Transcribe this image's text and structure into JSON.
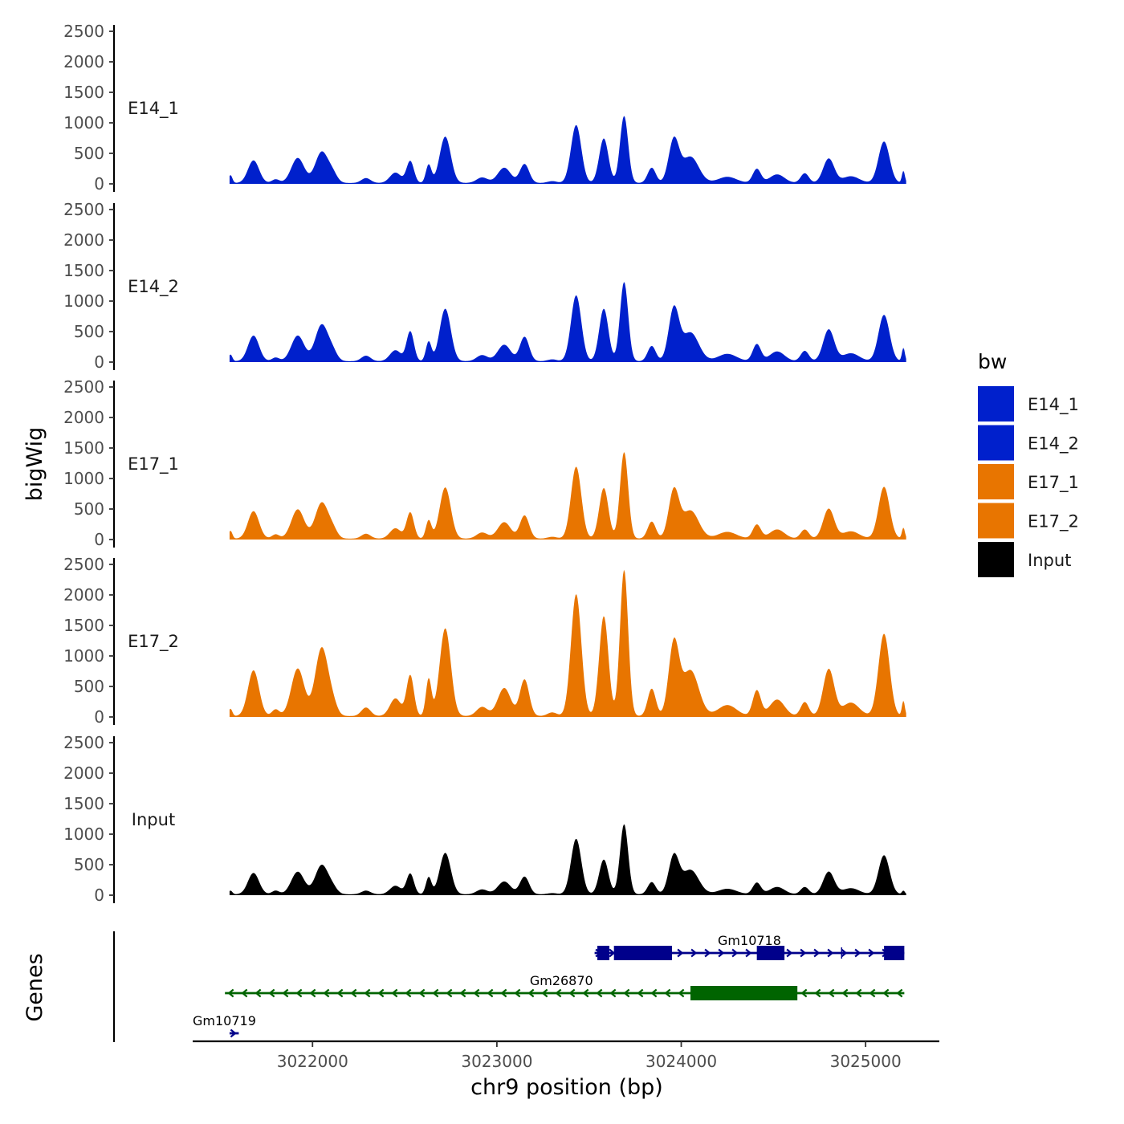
{
  "chart_data": {
    "type": "area",
    "region": "chr9",
    "xlabel": "chr9 position (bp)",
    "ylabel": "bigWig",
    "genes_label": "Genes",
    "xlim": [
      3021350,
      3025400
    ],
    "xticks": [
      3022000,
      3023000,
      3024000,
      3025000
    ],
    "xtick_labels": [
      "3022000",
      "3023000",
      "3024000",
      "3025000"
    ],
    "signal_range": [
      3021550,
      3025220
    ],
    "ylim": [
      0,
      2550
    ],
    "yticks": [
      0,
      500,
      1000,
      1500,
      2000,
      2500
    ],
    "ytick_labels": [
      "0",
      "500",
      "1000",
      "1500",
      "2000",
      "2500"
    ],
    "peaks": [
      {
        "center": 3021555,
        "width": 10
      },
      {
        "center": 3021680,
        "width": 30
      },
      {
        "center": 3021800,
        "width": 20
      },
      {
        "center": 3021920,
        "width": 35
      },
      {
        "center": 3022050,
        "width": 35
      },
      {
        "center": 3022110,
        "width": 25
      },
      {
        "center": 3022290,
        "width": 25
      },
      {
        "center": 3022450,
        "width": 30
      },
      {
        "center": 3022530,
        "width": 20
      },
      {
        "center": 3022630,
        "width": 15
      },
      {
        "center": 3022720,
        "width": 30
      },
      {
        "center": 3022920,
        "width": 30
      },
      {
        "center": 3023040,
        "width": 35
      },
      {
        "center": 3023150,
        "width": 25
      },
      {
        "center": 3023300,
        "width": 25
      },
      {
        "center": 3023430,
        "width": 28
      },
      {
        "center": 3023580,
        "width": 25
      },
      {
        "center": 3023690,
        "width": 22
      },
      {
        "center": 3023840,
        "width": 22
      },
      {
        "center": 3023960,
        "width": 28
      },
      {
        "center": 3024050,
        "width": 45
      },
      {
        "center": 3024250,
        "width": 50
      },
      {
        "center": 3024410,
        "width": 22
      },
      {
        "center": 3024520,
        "width": 40
      },
      {
        "center": 3024670,
        "width": 22
      },
      {
        "center": 3024800,
        "width": 30
      },
      {
        "center": 3024920,
        "width": 45
      },
      {
        "center": 3025100,
        "width": 30
      },
      {
        "center": 3025205,
        "width": 8
      }
    ],
    "baseline": 15,
    "tracks": [
      {
        "name": "E14_1",
        "label": "E14_1",
        "color": "#0020CC",
        "amplitudes": [
          130,
          370,
          60,
          410,
          510,
          130,
          80,
          170,
          360,
          300,
          760,
          90,
          250,
          310,
          30,
          950,
          730,
          1100,
          250,
          700,
          430,
          100,
          230,
          140,
          160,
          400,
          110,
          680,
          200
        ]
      },
      {
        "name": "E14_2",
        "label": "E14_2",
        "color": "#0020CC",
        "amplitudes": [
          110,
          420,
          60,
          420,
          600,
          130,
          90,
          180,
          490,
          320,
          860,
          100,
          270,
          400,
          30,
          1080,
          860,
          1300,
          250,
          850,
          470,
          120,
          280,
          160,
          170,
          520,
          130,
          760,
          220
        ]
      },
      {
        "name": "E17_1",
        "label": "E17_1",
        "color": "#E87500",
        "amplitudes": [
          130,
          450,
          70,
          480,
          590,
          130,
          80,
          170,
          430,
          300,
          840,
          100,
          270,
          380,
          30,
          1180,
          830,
          1420,
          280,
          780,
          460,
          110,
          230,
          150,
          150,
          490,
          120,
          850,
          180
        ]
      },
      {
        "name": "E17_2",
        "label": "E17_2",
        "color": "#E87500",
        "amplitudes": [
          120,
          750,
          110,
          780,
          1120,
          160,
          140,
          290,
          670,
          610,
          1440,
          150,
          460,
          600,
          60,
          2000,
          1640,
          2400,
          450,
          1180,
          750,
          180,
          420,
          270,
          230,
          770,
          220,
          1350,
          250
        ]
      },
      {
        "name": "Input",
        "label": "Input",
        "color": "#000000",
        "amplitudes": [
          60,
          350,
          60,
          370,
          480,
          90,
          60,
          140,
          340,
          280,
          680,
          80,
          210,
          290,
          20,
          910,
          570,
          1150,
          200,
          620,
          400,
          90,
          190,
          120,
          120,
          370,
          100,
          640,
          60
        ]
      }
    ],
    "legend": {
      "title": "bw",
      "placement": "right",
      "entries": [
        {
          "label": "E14_1",
          "color": "#0020CC"
        },
        {
          "label": "E14_2",
          "color": "#0020CC"
        },
        {
          "label": "E17_1",
          "color": "#E87500"
        },
        {
          "label": "E17_2",
          "color": "#E87500"
        },
        {
          "label": "Input",
          "color": "#000000"
        }
      ]
    },
    "genes": [
      {
        "name": "Gm10718",
        "strand": "+",
        "color": "#00008B",
        "row": 1,
        "start": 3023530,
        "end": 3025210,
        "exons": [
          [
            3023545,
            3023610
          ],
          [
            3023635,
            3023950
          ],
          [
            3024410,
            3024560
          ],
          [
            3025100,
            3025210
          ]
        ],
        "intron_ticks": [
          3024870
        ]
      },
      {
        "name": "Gm26870",
        "strand": "-",
        "color": "#006400",
        "row": 2,
        "start": 3021525,
        "end": 3025210,
        "exons": [
          [
            3024050,
            3024630
          ]
        ],
        "intron_ticks": []
      },
      {
        "name": "Gm10719",
        "strand": "+",
        "color": "#00008B",
        "row": 3,
        "start": 3021550,
        "end": 3021600,
        "exons": [],
        "intron_ticks": []
      }
    ]
  }
}
